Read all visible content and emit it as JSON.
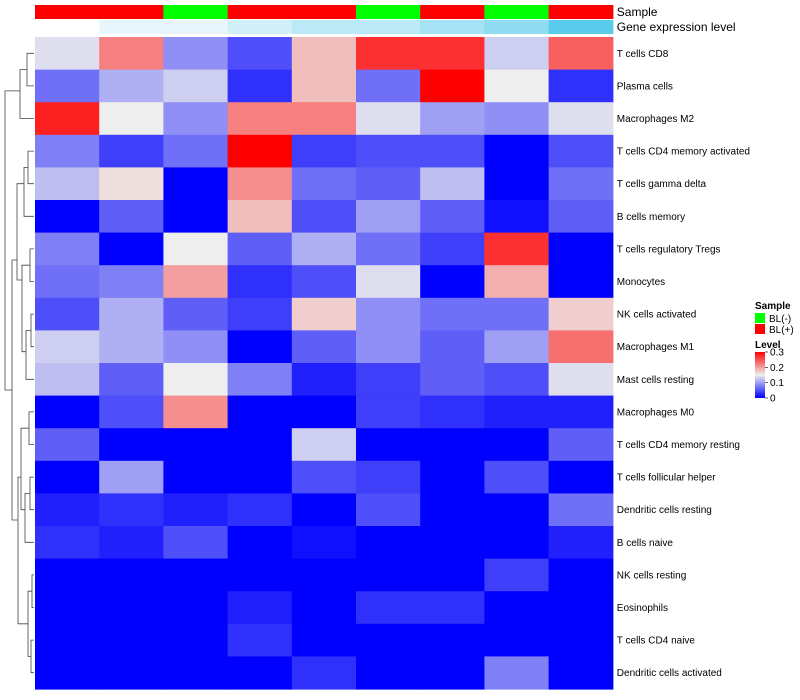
{
  "chart_data": {
    "type": "heatmap",
    "rows": [
      "T cells CD8",
      "Plasma cells",
      "Macrophages M2",
      "T cells CD4 memory activated",
      "T cells gamma delta",
      "B cells memory",
      "T cells regulatory  Tregs",
      "Monocytes",
      "NK cells activated",
      "Macrophages M1",
      "Mast cells resting",
      "Macrophages M0",
      "T cells CD4 memory resting",
      "T cells follicular helper",
      "Dendritic cells resting",
      "B cells naive",
      "NK cells resting",
      "Eosinophils",
      "T cells CD4 naive",
      "Dendritic cells activated"
    ],
    "columns": 9,
    "values": [
      [
        0.14,
        0.22,
        0.09,
        0.05,
        0.18,
        0.27,
        0.27,
        0.13,
        0.24
      ],
      [
        0.07,
        0.11,
        0.13,
        0.03,
        0.18,
        0.07,
        0.3,
        0.15,
        0.03
      ],
      [
        0.28,
        0.15,
        0.09,
        0.22,
        0.22,
        0.14,
        0.1,
        0.09,
        0.14
      ],
      [
        0.08,
        0.04,
        0.07,
        0.3,
        0.04,
        0.05,
        0.05,
        0.0,
        0.05
      ],
      [
        0.12,
        0.16,
        0.0,
        0.21,
        0.07,
        0.06,
        0.12,
        0.0,
        0.07
      ],
      [
        0.0,
        0.06,
        0.0,
        0.18,
        0.05,
        0.1,
        0.06,
        0.01,
        0.06
      ],
      [
        0.08,
        0.0,
        0.15,
        0.06,
        0.11,
        0.07,
        0.04,
        0.27,
        0.0
      ],
      [
        0.07,
        0.08,
        0.2,
        0.03,
        0.05,
        0.14,
        0.0,
        0.19,
        0.0
      ],
      [
        0.05,
        0.11,
        0.06,
        0.04,
        0.17,
        0.09,
        0.07,
        0.07,
        0.17
      ],
      [
        0.13,
        0.11,
        0.09,
        0.0,
        0.06,
        0.09,
        0.06,
        0.1,
        0.23
      ],
      [
        0.12,
        0.06,
        0.15,
        0.08,
        0.02,
        0.04,
        0.06,
        0.05,
        0.14
      ],
      [
        0.0,
        0.05,
        0.21,
        0.0,
        0.0,
        0.04,
        0.03,
        0.02,
        0.02
      ],
      [
        0.06,
        0.0,
        0.0,
        0.0,
        0.13,
        0.0,
        0.0,
        0.0,
        0.06
      ],
      [
        0.0,
        0.1,
        0.0,
        0.0,
        0.05,
        0.04,
        0.0,
        0.05,
        0.0
      ],
      [
        0.02,
        0.03,
        0.02,
        0.03,
        0.0,
        0.05,
        0.0,
        0.0,
        0.07
      ],
      [
        0.03,
        0.02,
        0.05,
        0.0,
        0.01,
        0.0,
        0.0,
        0.0,
        0.02
      ],
      [
        0.0,
        0.0,
        0.0,
        0.0,
        0.0,
        0.0,
        0.0,
        0.04,
        0.0
      ],
      [
        0.0,
        0.0,
        0.0,
        0.02,
        0.0,
        0.03,
        0.03,
        0.0,
        0.0
      ],
      [
        0.0,
        0.0,
        0.0,
        0.03,
        0.0,
        0.0,
        0.0,
        0.0,
        0.0
      ],
      [
        0.0,
        0.0,
        0.0,
        0.0,
        0.03,
        0.0,
        0.0,
        0.08,
        0.0
      ]
    ],
    "annotations": {
      "sample": {
        "label": "Sample",
        "values": [
          "BL(+)",
          "BL(+)",
          "BL(-)",
          "BL(+)",
          "BL(+)",
          "BL(-)",
          "BL(+)",
          "BL(-)",
          "BL(+)"
        ]
      },
      "gene_expression_level": {
        "label": "Gene expression level",
        "values": [
          1,
          2,
          2,
          3,
          4,
          4,
          5,
          6,
          7
        ],
        "colors": [
          "#ffffff",
          "#e8f6fb",
          "#d2f0f9",
          "#bce9f6",
          "#a6e2f3",
          "#90dcf1",
          "#5bcbec"
        ]
      }
    },
    "legend": {
      "sample": {
        "title": "Sample",
        "items": [
          {
            "label": "BL(-)",
            "color": "#00ff00"
          },
          {
            "label": "BL(+)",
            "color": "#ff0000"
          }
        ]
      },
      "level": {
        "title": "Level",
        "ticks": [
          "0",
          "0.1",
          "0.2",
          "0.3"
        ],
        "tick_values": [
          0,
          0.1,
          0.2,
          0.3
        ],
        "range": [
          0,
          0.3
        ],
        "colors": {
          "low": "#0000ff",
          "mid": "#eeeeee",
          "high": "#ff0000"
        }
      },
      "placement": "right"
    },
    "value_range": [
      0,
      0.3
    ]
  }
}
